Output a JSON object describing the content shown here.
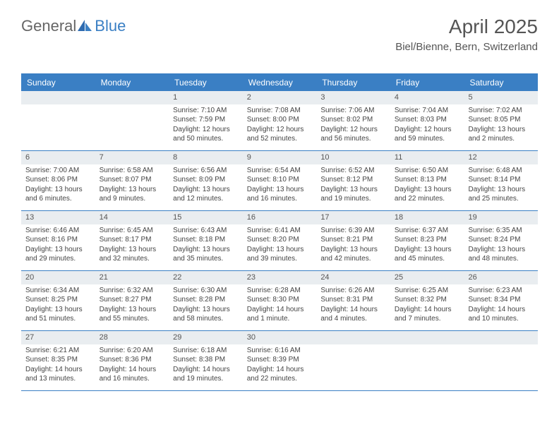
{
  "logo": {
    "text1": "General",
    "text2": "Blue"
  },
  "title": "April 2025",
  "subtitle": "Biel/Bienne, Bern, Switzerland",
  "colors": {
    "header_bg": "#3a7fc4",
    "header_text": "#ffffff",
    "daynum_bg": "#e9edf0",
    "text": "#444444",
    "page_bg": "#ffffff",
    "border": "#3a7fc4"
  },
  "fonts": {
    "title_size": 28,
    "subtitle_size": 15,
    "dayhead_size": 12,
    "daynum_size": 11,
    "body_size": 10
  },
  "day_names": [
    "Sunday",
    "Monday",
    "Tuesday",
    "Wednesday",
    "Thursday",
    "Friday",
    "Saturday"
  ],
  "weeks": [
    [
      {
        "n": "",
        "sr": "",
        "ss": "",
        "dl1": "",
        "dl2": ""
      },
      {
        "n": "",
        "sr": "",
        "ss": "",
        "dl1": "",
        "dl2": ""
      },
      {
        "n": "1",
        "sr": "Sunrise: 7:10 AM",
        "ss": "Sunset: 7:59 PM",
        "dl1": "Daylight: 12 hours",
        "dl2": "and 50 minutes."
      },
      {
        "n": "2",
        "sr": "Sunrise: 7:08 AM",
        "ss": "Sunset: 8:00 PM",
        "dl1": "Daylight: 12 hours",
        "dl2": "and 52 minutes."
      },
      {
        "n": "3",
        "sr": "Sunrise: 7:06 AM",
        "ss": "Sunset: 8:02 PM",
        "dl1": "Daylight: 12 hours",
        "dl2": "and 56 minutes."
      },
      {
        "n": "4",
        "sr": "Sunrise: 7:04 AM",
        "ss": "Sunset: 8:03 PM",
        "dl1": "Daylight: 12 hours",
        "dl2": "and 59 minutes."
      },
      {
        "n": "5",
        "sr": "Sunrise: 7:02 AM",
        "ss": "Sunset: 8:05 PM",
        "dl1": "Daylight: 13 hours",
        "dl2": "and 2 minutes."
      }
    ],
    [
      {
        "n": "6",
        "sr": "Sunrise: 7:00 AM",
        "ss": "Sunset: 8:06 PM",
        "dl1": "Daylight: 13 hours",
        "dl2": "and 6 minutes."
      },
      {
        "n": "7",
        "sr": "Sunrise: 6:58 AM",
        "ss": "Sunset: 8:07 PM",
        "dl1": "Daylight: 13 hours",
        "dl2": "and 9 minutes."
      },
      {
        "n": "8",
        "sr": "Sunrise: 6:56 AM",
        "ss": "Sunset: 8:09 PM",
        "dl1": "Daylight: 13 hours",
        "dl2": "and 12 minutes."
      },
      {
        "n": "9",
        "sr": "Sunrise: 6:54 AM",
        "ss": "Sunset: 8:10 PM",
        "dl1": "Daylight: 13 hours",
        "dl2": "and 16 minutes."
      },
      {
        "n": "10",
        "sr": "Sunrise: 6:52 AM",
        "ss": "Sunset: 8:12 PM",
        "dl1": "Daylight: 13 hours",
        "dl2": "and 19 minutes."
      },
      {
        "n": "11",
        "sr": "Sunrise: 6:50 AM",
        "ss": "Sunset: 8:13 PM",
        "dl1": "Daylight: 13 hours",
        "dl2": "and 22 minutes."
      },
      {
        "n": "12",
        "sr": "Sunrise: 6:48 AM",
        "ss": "Sunset: 8:14 PM",
        "dl1": "Daylight: 13 hours",
        "dl2": "and 25 minutes."
      }
    ],
    [
      {
        "n": "13",
        "sr": "Sunrise: 6:46 AM",
        "ss": "Sunset: 8:16 PM",
        "dl1": "Daylight: 13 hours",
        "dl2": "and 29 minutes."
      },
      {
        "n": "14",
        "sr": "Sunrise: 6:45 AM",
        "ss": "Sunset: 8:17 PM",
        "dl1": "Daylight: 13 hours",
        "dl2": "and 32 minutes."
      },
      {
        "n": "15",
        "sr": "Sunrise: 6:43 AM",
        "ss": "Sunset: 8:18 PM",
        "dl1": "Daylight: 13 hours",
        "dl2": "and 35 minutes."
      },
      {
        "n": "16",
        "sr": "Sunrise: 6:41 AM",
        "ss": "Sunset: 8:20 PM",
        "dl1": "Daylight: 13 hours",
        "dl2": "and 39 minutes."
      },
      {
        "n": "17",
        "sr": "Sunrise: 6:39 AM",
        "ss": "Sunset: 8:21 PM",
        "dl1": "Daylight: 13 hours",
        "dl2": "and 42 minutes."
      },
      {
        "n": "18",
        "sr": "Sunrise: 6:37 AM",
        "ss": "Sunset: 8:23 PM",
        "dl1": "Daylight: 13 hours",
        "dl2": "and 45 minutes."
      },
      {
        "n": "19",
        "sr": "Sunrise: 6:35 AM",
        "ss": "Sunset: 8:24 PM",
        "dl1": "Daylight: 13 hours",
        "dl2": "and 48 minutes."
      }
    ],
    [
      {
        "n": "20",
        "sr": "Sunrise: 6:34 AM",
        "ss": "Sunset: 8:25 PM",
        "dl1": "Daylight: 13 hours",
        "dl2": "and 51 minutes."
      },
      {
        "n": "21",
        "sr": "Sunrise: 6:32 AM",
        "ss": "Sunset: 8:27 PM",
        "dl1": "Daylight: 13 hours",
        "dl2": "and 55 minutes."
      },
      {
        "n": "22",
        "sr": "Sunrise: 6:30 AM",
        "ss": "Sunset: 8:28 PM",
        "dl1": "Daylight: 13 hours",
        "dl2": "and 58 minutes."
      },
      {
        "n": "23",
        "sr": "Sunrise: 6:28 AM",
        "ss": "Sunset: 8:30 PM",
        "dl1": "Daylight: 14 hours",
        "dl2": "and 1 minute."
      },
      {
        "n": "24",
        "sr": "Sunrise: 6:26 AM",
        "ss": "Sunset: 8:31 PM",
        "dl1": "Daylight: 14 hours",
        "dl2": "and 4 minutes."
      },
      {
        "n": "25",
        "sr": "Sunrise: 6:25 AM",
        "ss": "Sunset: 8:32 PM",
        "dl1": "Daylight: 14 hours",
        "dl2": "and 7 minutes."
      },
      {
        "n": "26",
        "sr": "Sunrise: 6:23 AM",
        "ss": "Sunset: 8:34 PM",
        "dl1": "Daylight: 14 hours",
        "dl2": "and 10 minutes."
      }
    ],
    [
      {
        "n": "27",
        "sr": "Sunrise: 6:21 AM",
        "ss": "Sunset: 8:35 PM",
        "dl1": "Daylight: 14 hours",
        "dl2": "and 13 minutes."
      },
      {
        "n": "28",
        "sr": "Sunrise: 6:20 AM",
        "ss": "Sunset: 8:36 PM",
        "dl1": "Daylight: 14 hours",
        "dl2": "and 16 minutes."
      },
      {
        "n": "29",
        "sr": "Sunrise: 6:18 AM",
        "ss": "Sunset: 8:38 PM",
        "dl1": "Daylight: 14 hours",
        "dl2": "and 19 minutes."
      },
      {
        "n": "30",
        "sr": "Sunrise: 6:16 AM",
        "ss": "Sunset: 8:39 PM",
        "dl1": "Daylight: 14 hours",
        "dl2": "and 22 minutes."
      },
      {
        "n": "",
        "sr": "",
        "ss": "",
        "dl1": "",
        "dl2": ""
      },
      {
        "n": "",
        "sr": "",
        "ss": "",
        "dl1": "",
        "dl2": ""
      },
      {
        "n": "",
        "sr": "",
        "ss": "",
        "dl1": "",
        "dl2": ""
      }
    ]
  ]
}
